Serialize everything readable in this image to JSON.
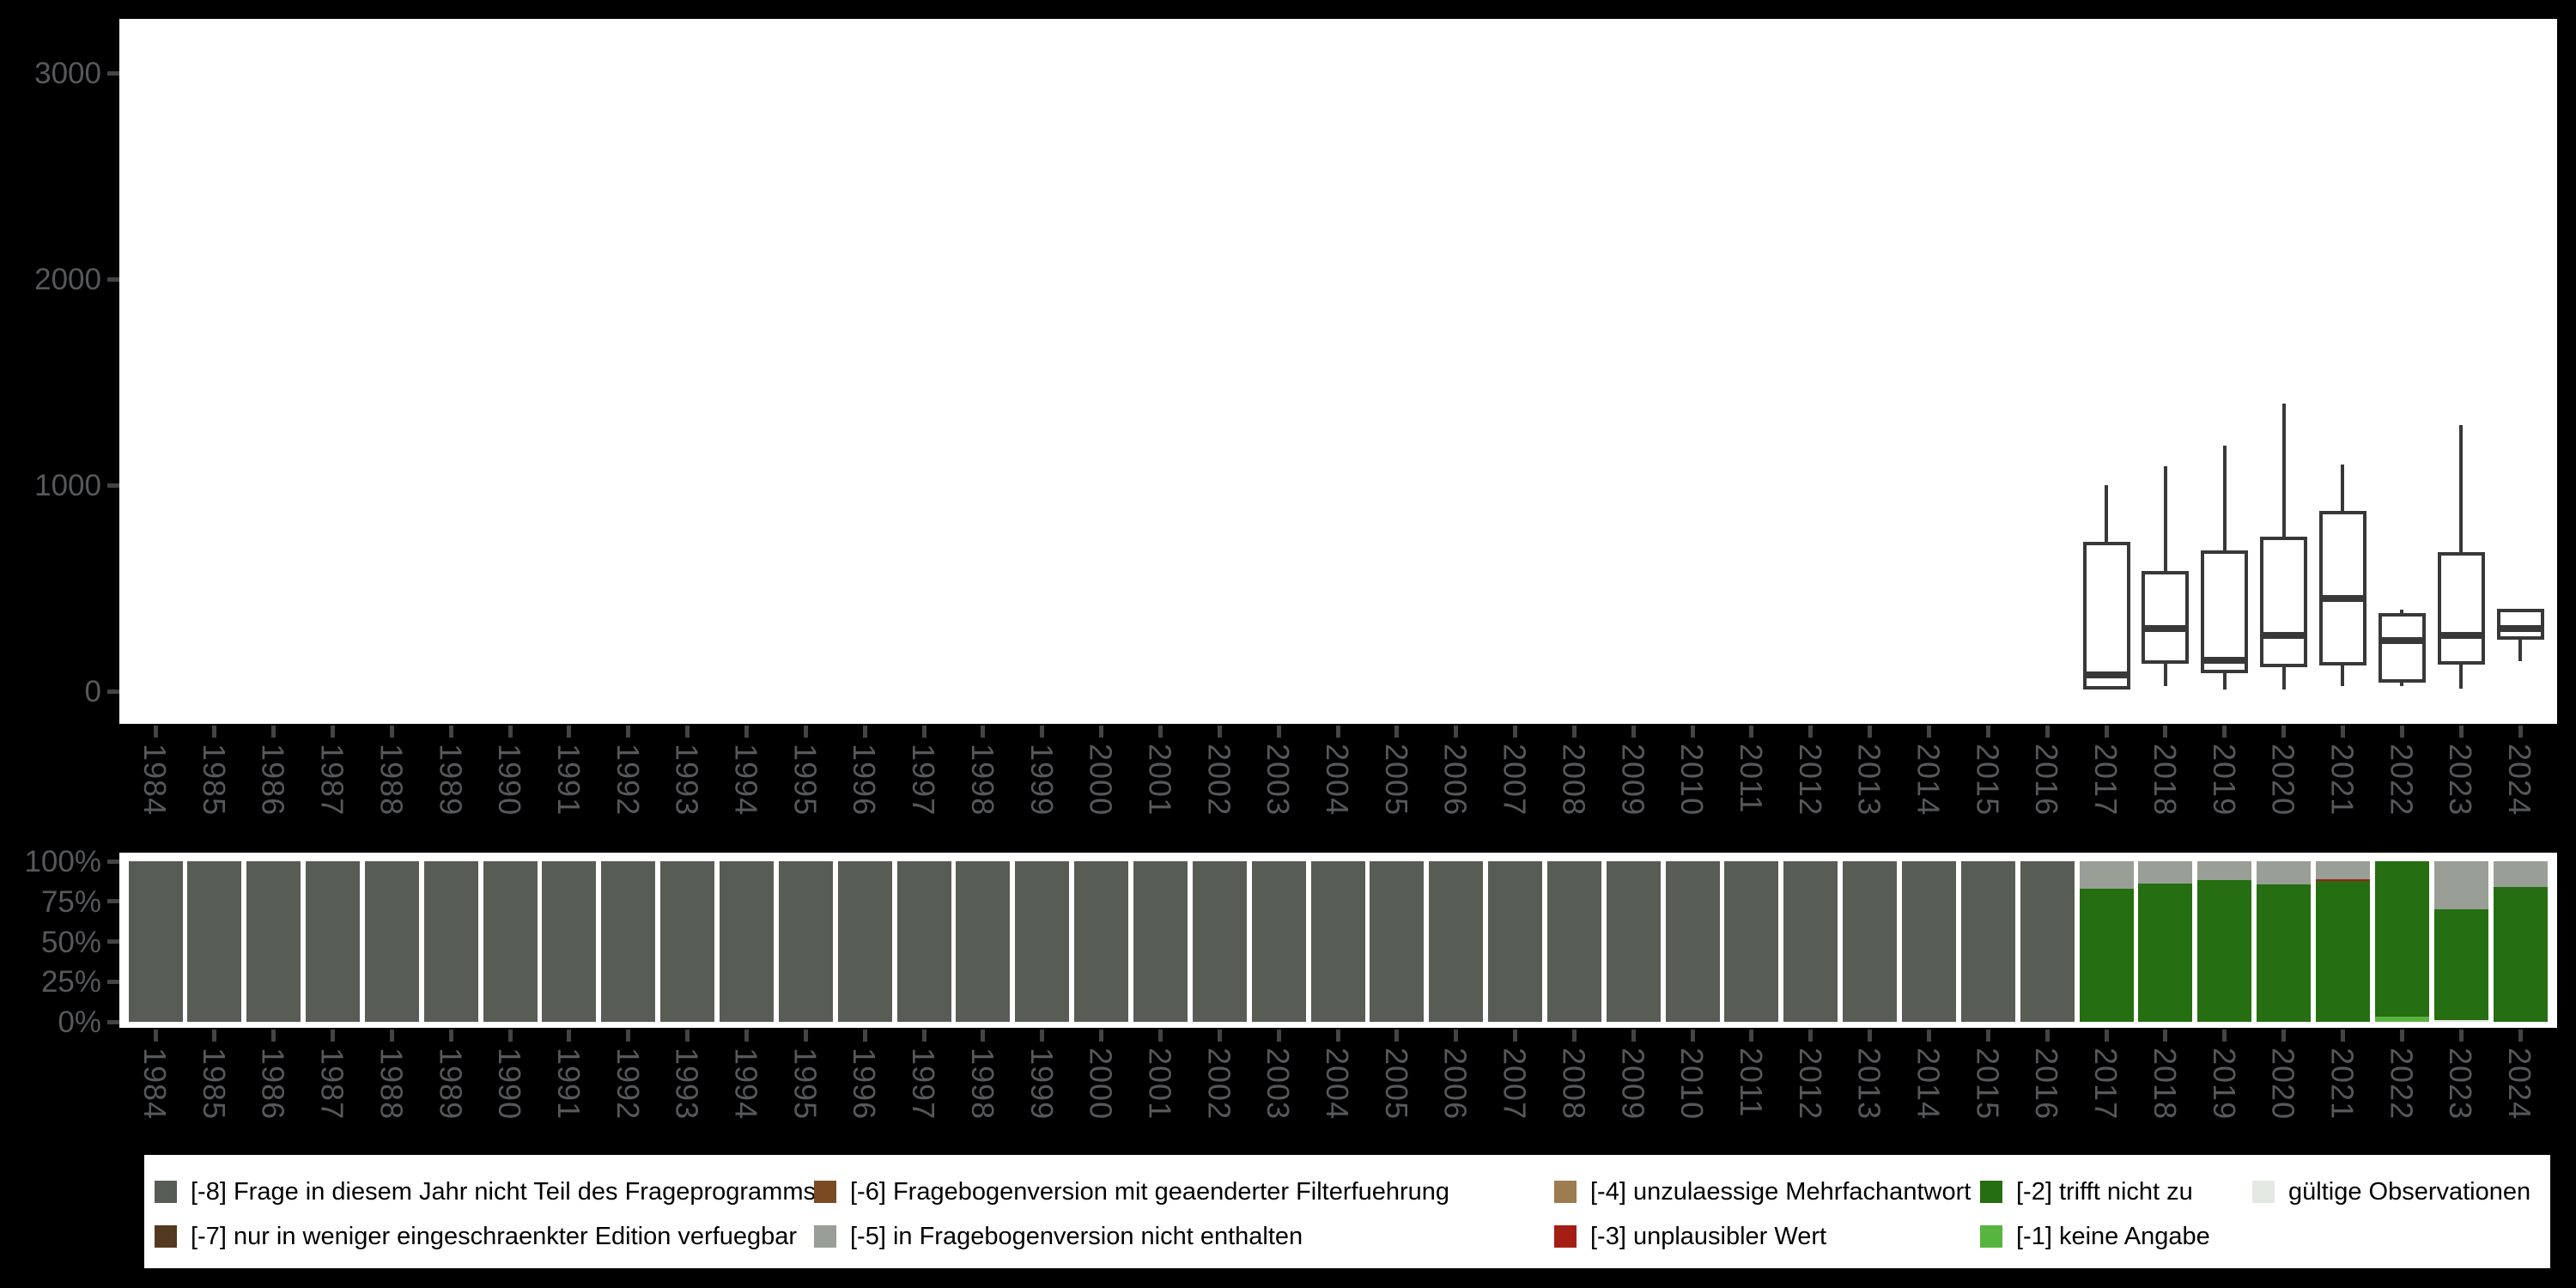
{
  "figure": {
    "background": "#000000",
    "panel_background": "#ffffff",
    "tick_label_color": "#56585b",
    "tick_mark_color": "#434446",
    "box_line_color": "#383838"
  },
  "palette": {
    "-8": "#575c54",
    "-7": "#533920",
    "-6": "#7a4b22",
    "-5": "#999e96",
    "-4": "#9d7c50",
    "-3": "#a41e15",
    "-2": "#256e11",
    "-1": "#57b43f",
    "valid": "#e4e8e2"
  },
  "years": [
    1984,
    1985,
    1986,
    1987,
    1988,
    1989,
    1990,
    1991,
    1992,
    1993,
    1994,
    1995,
    1996,
    1997,
    1998,
    1999,
    2000,
    2001,
    2002,
    2003,
    2004,
    2005,
    2006,
    2007,
    2008,
    2009,
    2010,
    2011,
    2012,
    2013,
    2014,
    2015,
    2016,
    2017,
    2018,
    2019,
    2020,
    2021,
    2022,
    2023,
    2024
  ],
  "chart_data": [
    {
      "type": "boxplot",
      "title": "",
      "xlabel": "",
      "ylabel": "",
      "x": "year",
      "ylim": [
        0,
        3260
      ],
      "yticks": [
        0,
        1000,
        2000,
        3000
      ],
      "ytick_labels": [
        "0",
        "1000",
        "2000",
        "3000"
      ],
      "grid": false,
      "boxes": [
        {
          "year": 2017,
          "min": 5,
          "q1": 7,
          "median": 80,
          "q3": 725,
          "max": 1000
        },
        {
          "year": 2018,
          "min": 25,
          "q1": 133,
          "median": 305,
          "q3": 583,
          "max": 1090
        },
        {
          "year": 2019,
          "min": 7,
          "q1": 87,
          "median": 150,
          "q3": 685,
          "max": 1190
        },
        {
          "year": 2020,
          "min": 7,
          "q1": 117,
          "median": 272,
          "q3": 750,
          "max": 1395
        },
        {
          "year": 2021,
          "min": 27,
          "q1": 125,
          "median": 448,
          "q3": 875,
          "max": 1098
        },
        {
          "year": 2022,
          "min": 23,
          "q1": 42,
          "median": 244,
          "q3": 381,
          "max": 396
        },
        {
          "year": 2023,
          "min": 12,
          "q1": 131,
          "median": 269,
          "q3": 673,
          "max": 1290
        },
        {
          "year": 2024,
          "min": 146,
          "q1": 248,
          "median": 306,
          "q3": 402,
          "max": 402
        }
      ]
    },
    {
      "type": "bar",
      "subtype": "stacked-100pct",
      "title": "",
      "xlabel": "",
      "ylabel": "",
      "x": "year",
      "ylim": [
        0,
        100
      ],
      "yticks": [
        0,
        25,
        50,
        75,
        100
      ],
      "ytick_labels": [
        "0%",
        "25%",
        "50%",
        "75%",
        "100%"
      ],
      "grid": false,
      "legend_position": "bottom",
      "bars": [
        {
          "year": 1984,
          "segments": [
            {
              "code": "-8",
              "pct": 100
            }
          ]
        },
        {
          "year": 1985,
          "segments": [
            {
              "code": "-8",
              "pct": 100
            }
          ]
        },
        {
          "year": 1986,
          "segments": [
            {
              "code": "-8",
              "pct": 100
            }
          ]
        },
        {
          "year": 1987,
          "segments": [
            {
              "code": "-8",
              "pct": 100
            }
          ]
        },
        {
          "year": 1988,
          "segments": [
            {
              "code": "-8",
              "pct": 100
            }
          ]
        },
        {
          "year": 1989,
          "segments": [
            {
              "code": "-8",
              "pct": 100
            }
          ]
        },
        {
          "year": 1990,
          "segments": [
            {
              "code": "-8",
              "pct": 100
            }
          ]
        },
        {
          "year": 1991,
          "segments": [
            {
              "code": "-8",
              "pct": 100
            }
          ]
        },
        {
          "year": 1992,
          "segments": [
            {
              "code": "-8",
              "pct": 100
            }
          ]
        },
        {
          "year": 1993,
          "segments": [
            {
              "code": "-8",
              "pct": 100
            }
          ]
        },
        {
          "year": 1994,
          "segments": [
            {
              "code": "-8",
              "pct": 100
            }
          ]
        },
        {
          "year": 1995,
          "segments": [
            {
              "code": "-8",
              "pct": 100
            }
          ]
        },
        {
          "year": 1996,
          "segments": [
            {
              "code": "-8",
              "pct": 100
            }
          ]
        },
        {
          "year": 1997,
          "segments": [
            {
              "code": "-8",
              "pct": 100
            }
          ]
        },
        {
          "year": 1998,
          "segments": [
            {
              "code": "-8",
              "pct": 100
            }
          ]
        },
        {
          "year": 1999,
          "segments": [
            {
              "code": "-8",
              "pct": 100
            }
          ]
        },
        {
          "year": 2000,
          "segments": [
            {
              "code": "-8",
              "pct": 100
            }
          ]
        },
        {
          "year": 2001,
          "segments": [
            {
              "code": "-8",
              "pct": 100
            }
          ]
        },
        {
          "year": 2002,
          "segments": [
            {
              "code": "-8",
              "pct": 100
            }
          ]
        },
        {
          "year": 2003,
          "segments": [
            {
              "code": "-8",
              "pct": 100
            }
          ]
        },
        {
          "year": 2004,
          "segments": [
            {
              "code": "-8",
              "pct": 100
            }
          ]
        },
        {
          "year": 2005,
          "segments": [
            {
              "code": "-8",
              "pct": 100
            }
          ]
        },
        {
          "year": 2006,
          "segments": [
            {
              "code": "-8",
              "pct": 100
            }
          ]
        },
        {
          "year": 2007,
          "segments": [
            {
              "code": "-8",
              "pct": 100
            }
          ]
        },
        {
          "year": 2008,
          "segments": [
            {
              "code": "-8",
              "pct": 100
            }
          ]
        },
        {
          "year": 2009,
          "segments": [
            {
              "code": "-8",
              "pct": 100
            }
          ]
        },
        {
          "year": 2010,
          "segments": [
            {
              "code": "-8",
              "pct": 100
            }
          ]
        },
        {
          "year": 2011,
          "segments": [
            {
              "code": "-8",
              "pct": 100
            }
          ]
        },
        {
          "year": 2012,
          "segments": [
            {
              "code": "-8",
              "pct": 100
            }
          ]
        },
        {
          "year": 2013,
          "segments": [
            {
              "code": "-8",
              "pct": 100
            }
          ]
        },
        {
          "year": 2014,
          "segments": [
            {
              "code": "-8",
              "pct": 100
            }
          ]
        },
        {
          "year": 2015,
          "segments": [
            {
              "code": "-8",
              "pct": 100
            }
          ]
        },
        {
          "year": 2016,
          "segments": [
            {
              "code": "-8",
              "pct": 100
            }
          ]
        },
        {
          "year": 2017,
          "segments": [
            {
              "code": "-5",
              "pct": 17
            },
            {
              "code": "-2",
              "pct": 83
            }
          ]
        },
        {
          "year": 2018,
          "segments": [
            {
              "code": "-5",
              "pct": 14
            },
            {
              "code": "-2",
              "pct": 86
            }
          ]
        },
        {
          "year": 2019,
          "segments": [
            {
              "code": "-5",
              "pct": 12
            },
            {
              "code": "-2",
              "pct": 88
            }
          ]
        },
        {
          "year": 2020,
          "segments": [
            {
              "code": "-5",
              "pct": 14.5
            },
            {
              "code": "-2",
              "pct": 85.5
            }
          ]
        },
        {
          "year": 2021,
          "segments": [
            {
              "code": "-5",
              "pct": 11
            },
            {
              "code": "-3",
              "pct": 1.5
            },
            {
              "code": "-2",
              "pct": 87.5
            }
          ]
        },
        {
          "year": 2022,
          "segments": [
            {
              "code": "-2",
              "pct": 97
            },
            {
              "code": "-1",
              "pct": 3
            }
          ]
        },
        {
          "year": 2023,
          "segments": [
            {
              "code": "-5",
              "pct": 30
            },
            {
              "code": "-2",
              "pct": 69
            },
            {
              "code": "valid",
              "pct": 1
            }
          ]
        },
        {
          "year": 2024,
          "segments": [
            {
              "code": "-5",
              "pct": 16
            },
            {
              "code": "-2",
              "pct": 84
            }
          ]
        }
      ]
    }
  ],
  "legend": {
    "entries": [
      {
        "code": "-8",
        "label": "[-8] Frage in diesem Jahr nicht Teil des Frageprogramms",
        "row": 0,
        "col": 0
      },
      {
        "code": "-7",
        "label": "[-7] nur in weniger eingeschraenkter Edition verfuegbar",
        "row": 1,
        "col": 0
      },
      {
        "code": "-6",
        "label": "[-6] Fragebogenversion mit geaenderter Filterfuehrung",
        "row": 0,
        "col": 1
      },
      {
        "code": "-5",
        "label": "[-5] in Fragebogenversion nicht enthalten",
        "row": 1,
        "col": 1
      },
      {
        "code": "-4",
        "label": "[-4] unzulaessige Mehrfachantwort",
        "row": 0,
        "col": 2
      },
      {
        "code": "-3",
        "label": "[-3] unplausibler Wert",
        "row": 1,
        "col": 2
      },
      {
        "code": "-2",
        "label": "[-2] trifft nicht zu",
        "row": 0,
        "col": 3
      },
      {
        "code": "-1",
        "label": "[-1] keine Angabe",
        "row": 1,
        "col": 3
      },
      {
        "code": "valid",
        "label": "gültige Observationen",
        "row": 0,
        "col": 4
      }
    ]
  }
}
